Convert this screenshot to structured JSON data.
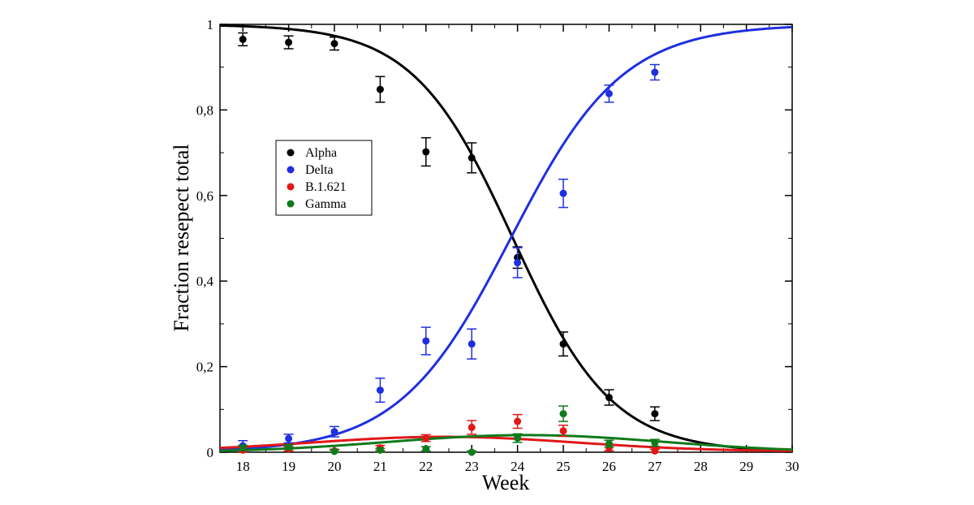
{
  "chart_data": {
    "type": "scatter",
    "title": "",
    "xlabel": "Week",
    "ylabel": "Fraction resepect total",
    "xlim": [
      17.5,
      30
    ],
    "ylim": [
      0,
      1
    ],
    "xticks": [
      {
        "value": 18,
        "label": "18"
      },
      {
        "value": 19,
        "label": "19"
      },
      {
        "value": 20,
        "label": "20"
      },
      {
        "value": 21,
        "label": "21"
      },
      {
        "value": 22,
        "label": "22"
      },
      {
        "value": 23,
        "label": "23"
      },
      {
        "value": 24,
        "label": "24"
      },
      {
        "value": 25,
        "label": "25"
      },
      {
        "value": 26,
        "label": "26"
      },
      {
        "value": 27,
        "label": "27"
      },
      {
        "value": 28,
        "label": "28"
      },
      {
        "value": 29,
        "label": "29"
      },
      {
        "value": 30,
        "label": "30"
      }
    ],
    "yticks": [
      {
        "value": 0,
        "label": "0"
      },
      {
        "value": 0.2,
        "label": "0,2"
      },
      {
        "value": 0.4,
        "label": "0,4"
      },
      {
        "value": 0.6,
        "label": "0,6"
      },
      {
        "value": 0.8,
        "label": "0,8"
      },
      {
        "value": 1,
        "label": "1"
      }
    ],
    "grid": false,
    "legend_position": "upper-left",
    "series": [
      {
        "name": "Alpha",
        "color": "#000000",
        "points": [
          {
            "x": 18,
            "y": 0.965,
            "err": 0.015
          },
          {
            "x": 19,
            "y": 0.958,
            "err": 0.015
          },
          {
            "x": 20,
            "y": 0.955,
            "err": 0.015
          },
          {
            "x": 21,
            "y": 0.848,
            "err": 0.03
          },
          {
            "x": 22,
            "y": 0.702,
            "err": 0.033
          },
          {
            "x": 23,
            "y": 0.688,
            "err": 0.035
          },
          {
            "x": 24,
            "y": 0.455,
            "err": 0.025
          },
          {
            "x": 25,
            "y": 0.253,
            "err": 0.028
          },
          {
            "x": 26,
            "y": 0.128,
            "err": 0.018
          },
          {
            "x": 27,
            "y": 0.09,
            "err": 0.016
          }
        ],
        "fit": {
          "shape": "decreasing-logistic",
          "amplitude": 1.0,
          "midpoint": 23.9,
          "rate": 0.92
        }
      },
      {
        "name": "Delta",
        "color": "#1f2fe0",
        "points": [
          {
            "x": 18,
            "y": 0.015,
            "err": 0.012
          },
          {
            "x": 19,
            "y": 0.032,
            "err": 0.01
          },
          {
            "x": 20,
            "y": 0.048,
            "err": 0.012
          },
          {
            "x": 21,
            "y": 0.145,
            "err": 0.028
          },
          {
            "x": 22,
            "y": 0.26,
            "err": 0.032
          },
          {
            "x": 23,
            "y": 0.253,
            "err": 0.035
          },
          {
            "x": 24,
            "y": 0.443,
            "err": 0.035
          },
          {
            "x": 25,
            "y": 0.605,
            "err": 0.033
          },
          {
            "x": 26,
            "y": 0.838,
            "err": 0.02
          },
          {
            "x": 27,
            "y": 0.888,
            "err": 0.018
          }
        ],
        "fit": {
          "shape": "logistic",
          "amplitude": 1.0,
          "midpoint": 23.85,
          "rate": 0.82
        }
      },
      {
        "name": "B.1.621",
        "color": "#e01818",
        "points": [
          {
            "x": 18,
            "y": 0.005,
            "err": 0.006
          },
          {
            "x": 19,
            "y": 0.008,
            "err": 0.005
          },
          {
            "x": 20,
            "y": 0.003,
            "err": 0.004
          },
          {
            "x": 21,
            "y": 0.01,
            "err": 0.006
          },
          {
            "x": 22,
            "y": 0.033,
            "err": 0.008
          },
          {
            "x": 23,
            "y": 0.058,
            "err": 0.016
          },
          {
            "x": 24,
            "y": 0.072,
            "err": 0.016
          },
          {
            "x": 25,
            "y": 0.05,
            "err": 0.013
          },
          {
            "x": 26,
            "y": 0.01,
            "err": 0.007
          },
          {
            "x": 27,
            "y": 0.003,
            "err": 0.004
          }
        ],
        "fit": {
          "shape": "gaussian",
          "baseline": 0.002,
          "amplitude": 0.034,
          "center": 22.4,
          "width": 2.9
        }
      },
      {
        "name": "Gamma",
        "color": "#0f7a1c",
        "points": [
          {
            "x": 18,
            "y": 0.01,
            "err": 0.006
          },
          {
            "x": 19,
            "y": 0.012,
            "err": 0.005
          },
          {
            "x": 20,
            "y": 0.002,
            "err": 0.003
          },
          {
            "x": 21,
            "y": 0.005,
            "err": 0.004
          },
          {
            "x": 22,
            "y": 0.008,
            "err": 0.005
          },
          {
            "x": 23,
            "y": 0.0,
            "err": 0.003
          },
          {
            "x": 24,
            "y": 0.033,
            "err": 0.01
          },
          {
            "x": 25,
            "y": 0.09,
            "err": 0.018
          },
          {
            "x": 26,
            "y": 0.02,
            "err": 0.008
          },
          {
            "x": 27,
            "y": 0.022,
            "err": 0.008
          }
        ],
        "fit": {
          "shape": "gaussian",
          "baseline": 0.0,
          "amplitude": 0.04,
          "center": 24.2,
          "width": 3.0
        }
      }
    ]
  }
}
